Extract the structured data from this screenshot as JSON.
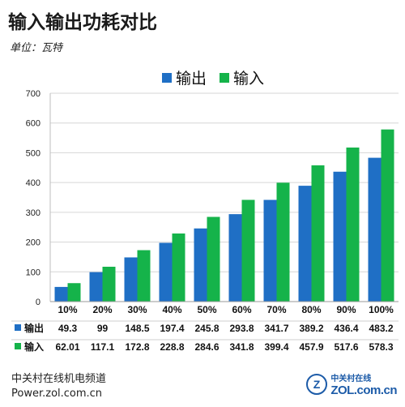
{
  "title": "输入输出功耗对比",
  "unit_label": "单位：瓦特",
  "footer": {
    "line1": "中关村在线机电频道",
    "line2": "Power.zol.com.cn"
  },
  "logo": {
    "cn": "中关村在线",
    "en": "ZOL.com.cn",
    "mark": "Z"
  },
  "colors": {
    "output": "#1f6fc5",
    "input": "#15b34a"
  },
  "chart_data": {
    "type": "bar",
    "title": "输入输出功耗对比",
    "subtitle": "单位：瓦特",
    "categories": [
      "10%",
      "20%",
      "30%",
      "40%",
      "50%",
      "60%",
      "70%",
      "80%",
      "90%",
      "100%"
    ],
    "series": [
      {
        "name": "输出",
        "values": [
          49.3,
          99,
          148.5,
          197.4,
          245.8,
          293.8,
          341.7,
          389.2,
          436.4,
          483.2
        ],
        "labels": [
          "49.3",
          "99",
          "148.5",
          "197.4",
          "245.8",
          "293.8",
          "341.7",
          "389.2",
          "436.4",
          "483.2"
        ]
      },
      {
        "name": "输入",
        "values": [
          62.01,
          117.1,
          172.8,
          228.8,
          284.6,
          341.8,
          399.4,
          457.9,
          517.6,
          578.3
        ],
        "labels": [
          "62.01",
          "117.1",
          "172.8",
          "228.8",
          "284.6",
          "341.8",
          "399.4",
          "457.9",
          "517.6",
          "578.3"
        ]
      }
    ],
    "ylim": [
      0,
      700
    ],
    "yticks": [
      "0",
      "100",
      "200",
      "300",
      "400",
      "500",
      "600",
      "700"
    ],
    "grid": true,
    "legend_position": "top-center",
    "data_table": true
  }
}
